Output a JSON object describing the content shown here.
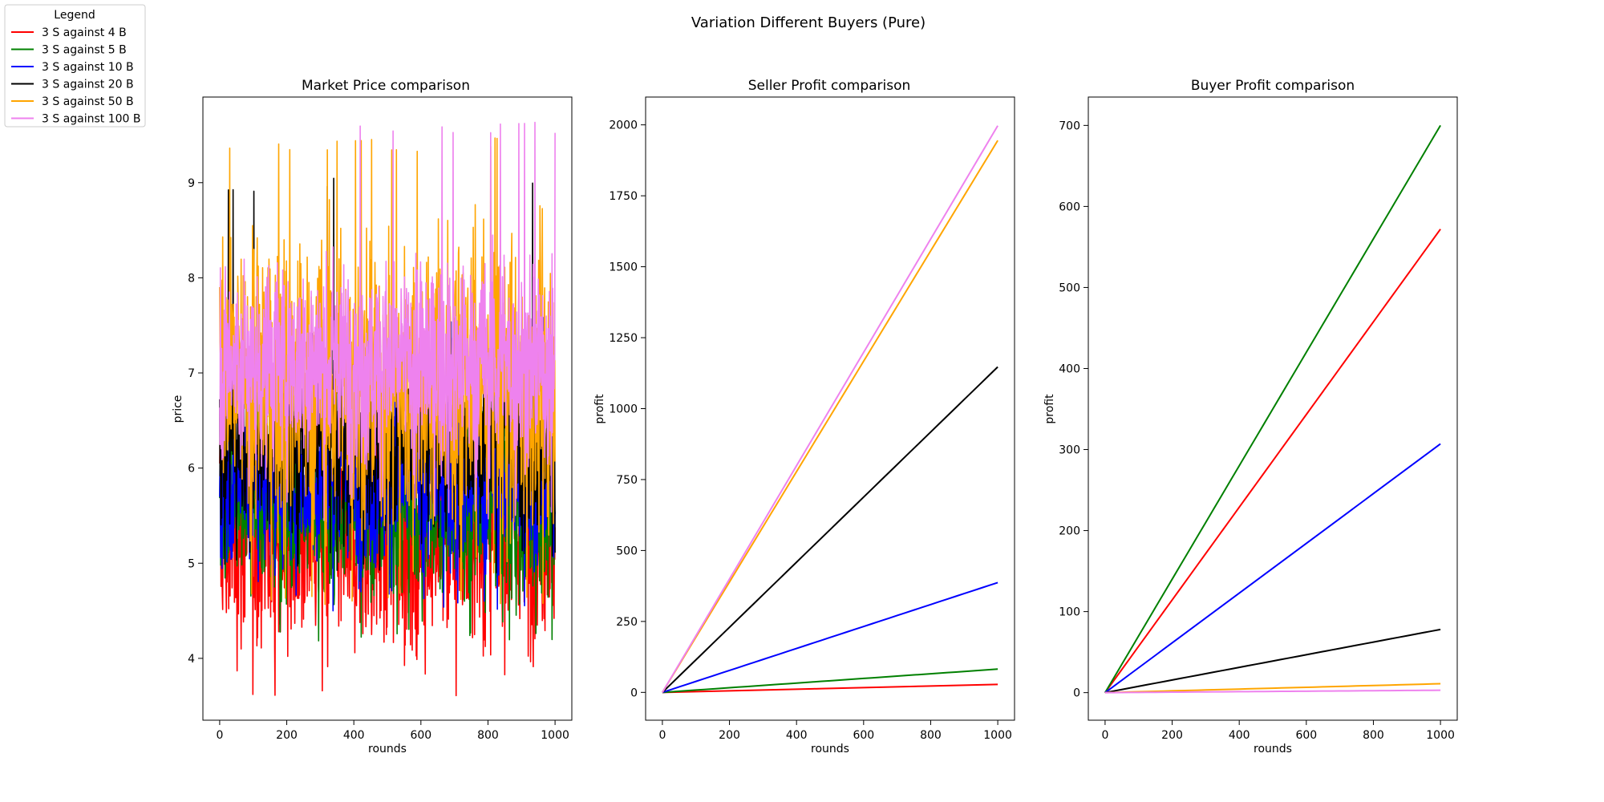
{
  "figure": {
    "suptitle": "Variation Different Buyers (Pure)"
  },
  "legend": {
    "title": "Legend",
    "entries": [
      {
        "label": "3 S against 4 B",
        "color": "#ff0000"
      },
      {
        "label": "3 S against 5 B",
        "color": "#008000"
      },
      {
        "label": "3 S against 10 B",
        "color": "#0000ff"
      },
      {
        "label": "3 S against 20 B",
        "color": "#000000"
      },
      {
        "label": "3 S against 50 B",
        "color": "#ffa500"
      },
      {
        "label": "3 S against 100 B",
        "color": "#ee82ee"
      }
    ]
  },
  "chart_data": [
    {
      "type": "line",
      "title": "Market Price comparison",
      "xlabel": "rounds",
      "ylabel": "price",
      "xlim": [
        -50,
        1050
      ],
      "ylim": [
        3.35,
        9.9
      ],
      "xticks": [
        0,
        200,
        400,
        600,
        800,
        1000
      ],
      "yticks": [
        4,
        5,
        6,
        7,
        8,
        9
      ],
      "grid": false,
      "series": [
        {
          "name": "3 S against 4 B",
          "color": "#ff0000",
          "noise": true,
          "x": [
            0,
            1000
          ],
          "y": [
            5.3,
            5.3
          ],
          "band": [
            3.55,
            7.3
          ]
        },
        {
          "name": "3 S against 5 B",
          "color": "#008000",
          "noise": true,
          "x": [
            0,
            1000
          ],
          "y": [
            5.6,
            5.6
          ],
          "band": [
            4.17,
            7.3
          ]
        },
        {
          "name": "3 S against 10 B",
          "color": "#0000ff",
          "noise": true,
          "x": [
            0,
            1000
          ],
          "y": [
            5.9,
            5.9
          ],
          "band": [
            4.5,
            7.6
          ]
        },
        {
          "name": "3 S against 20 B",
          "color": "#000000",
          "noise": true,
          "x": [
            0,
            1000
          ],
          "y": [
            6.3,
            6.3
          ],
          "band": [
            4.9,
            9.05
          ]
        },
        {
          "name": "3 S against 50 B",
          "color": "#ffa500",
          "noise": true,
          "x": [
            0,
            1000
          ],
          "y": [
            6.9,
            6.9
          ],
          "band": [
            4.55,
            9.47
          ]
        },
        {
          "name": "3 S against 100 B",
          "color": "#ee82ee",
          "noise": true,
          "x": [
            0,
            1000
          ],
          "y": [
            7.1,
            7.1
          ],
          "band": [
            5.45,
            9.65
          ]
        }
      ]
    },
    {
      "type": "line",
      "title": "Seller Profit comparison",
      "xlabel": "rounds",
      "ylabel": "profit",
      "xlim": [
        -50,
        1050
      ],
      "ylim": [
        -98,
        2098
      ],
      "xticks": [
        0,
        200,
        400,
        600,
        800,
        1000
      ],
      "yticks": [
        0,
        250,
        500,
        750,
        1000,
        1250,
        1500,
        1750,
        2000
      ],
      "grid": false,
      "series": [
        {
          "name": "3 S against 4 B",
          "color": "#ff0000",
          "x": [
            0,
            1000
          ],
          "y": [
            0,
            28
          ]
        },
        {
          "name": "3 S against 5 B",
          "color": "#008000",
          "x": [
            0,
            1000
          ],
          "y": [
            0,
            82
          ]
        },
        {
          "name": "3 S against 10 B",
          "color": "#0000ff",
          "x": [
            0,
            1000
          ],
          "y": [
            0,
            387
          ]
        },
        {
          "name": "3 S against 20 B",
          "color": "#000000",
          "x": [
            0,
            1000
          ],
          "y": [
            0,
            1147
          ]
        },
        {
          "name": "3 S against 50 B",
          "color": "#ffa500",
          "x": [
            0,
            1000
          ],
          "y": [
            0,
            1945
          ]
        },
        {
          "name": "3 S against 100 B",
          "color": "#ee82ee",
          "x": [
            0,
            1000
          ],
          "y": [
            0,
            1997
          ]
        }
      ]
    },
    {
      "type": "line",
      "title": "Buyer Profit comparison",
      "xlabel": "rounds",
      "ylabel": "profit",
      "xlim": [
        -50,
        1050
      ],
      "ylim": [
        -34,
        735
      ],
      "xticks": [
        0,
        200,
        400,
        600,
        800,
        1000
      ],
      "yticks": [
        0,
        100,
        200,
        300,
        400,
        500,
        600,
        700
      ],
      "grid": false,
      "series": [
        {
          "name": "3 S against 4 B",
          "color": "#ff0000",
          "x": [
            0,
            1000
          ],
          "y": [
            0,
            572
          ]
        },
        {
          "name": "3 S against 5 B",
          "color": "#008000",
          "x": [
            0,
            1000
          ],
          "y": [
            0,
            700
          ]
        },
        {
          "name": "3 S against 10 B",
          "color": "#0000ff",
          "x": [
            0,
            1000
          ],
          "y": [
            0,
            307
          ]
        },
        {
          "name": "3 S against 20 B",
          "color": "#000000",
          "x": [
            0,
            1000
          ],
          "y": [
            0,
            78
          ]
        },
        {
          "name": "3 S against 50 B",
          "color": "#ffa500",
          "x": [
            0,
            1000
          ],
          "y": [
            0,
            11
          ]
        },
        {
          "name": "3 S against 100 B",
          "color": "#ee82ee",
          "x": [
            0,
            1000
          ],
          "y": [
            0,
            3
          ]
        }
      ]
    }
  ]
}
